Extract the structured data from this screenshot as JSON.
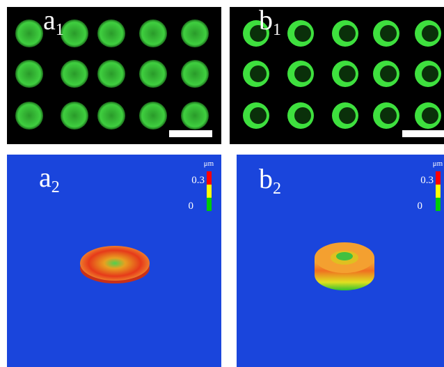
{
  "panels": [
    {
      "letter": "a",
      "sub": "1"
    },
    {
      "letter": "b",
      "sub": "1"
    },
    {
      "letter": "a",
      "sub": "2"
    },
    {
      "letter": "b",
      "sub": "2"
    }
  ],
  "colorbars": [
    {
      "unit": "μm",
      "max": "0.3",
      "min": "0"
    },
    {
      "unit": "μm",
      "max": "0.3",
      "min": "0"
    }
  ]
}
